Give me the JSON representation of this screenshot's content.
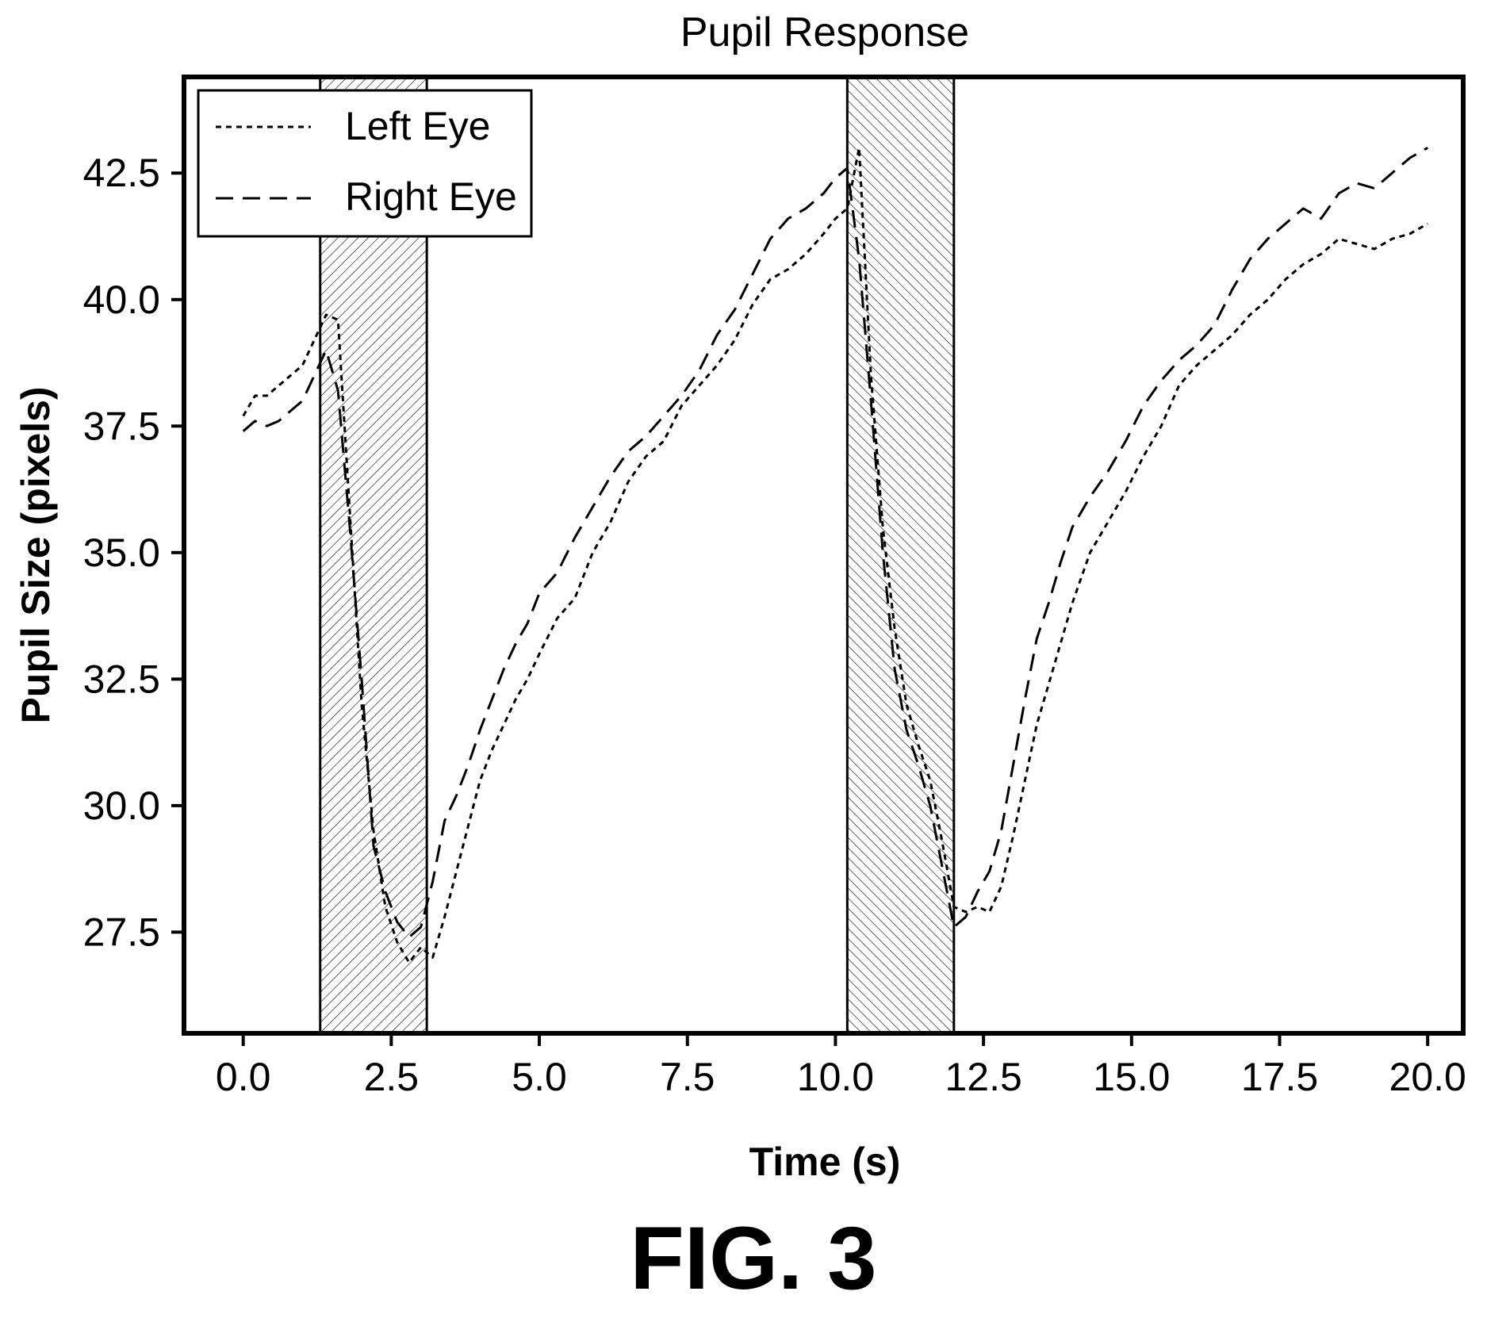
{
  "chart_data": {
    "type": "line",
    "title": "Pupil Response",
    "xlabel": "Time (s)",
    "ylabel": "Pupil Size (pixels)",
    "xlim": [
      -1.0,
      20.6
    ],
    "ylim": [
      25.5,
      44.4
    ],
    "xticks": [
      "0.0",
      "2.5",
      "5.0",
      "7.5",
      "10.0",
      "12.5",
      "15.0",
      "17.5",
      "20.0"
    ],
    "yticks": [
      "27.5",
      "30.0",
      "32.5",
      "35.0",
      "37.5",
      "40.0",
      "42.5"
    ],
    "grid": false,
    "legend_position": "top-left",
    "shaded_intervals": [
      [
        1.3,
        3.1
      ],
      [
        10.2,
        12.0
      ]
    ],
    "series": [
      {
        "name": "Left Eye",
        "style": "dotted",
        "x": [
          0.0,
          0.2,
          0.4,
          0.6,
          0.8,
          1.0,
          1.2,
          1.4,
          1.6,
          1.8,
          2.0,
          2.2,
          2.4,
          2.6,
          2.8,
          3.0,
          3.2,
          3.4,
          3.6,
          3.8,
          4.0,
          4.2,
          4.4,
          4.6,
          4.8,
          5.0,
          5.3,
          5.6,
          5.9,
          6.2,
          6.5,
          6.8,
          7.1,
          7.4,
          7.7,
          8.0,
          8.3,
          8.6,
          8.9,
          9.2,
          9.5,
          9.8,
          10.0,
          10.2,
          10.4,
          10.6,
          10.8,
          11.0,
          11.2,
          11.4,
          11.6,
          11.8,
          12.0,
          12.2,
          12.4,
          12.6,
          12.8,
          13.0,
          13.2,
          13.4,
          13.6,
          13.8,
          14.0,
          14.3,
          14.6,
          14.9,
          15.2,
          15.5,
          15.8,
          16.1,
          16.4,
          16.7,
          17.0,
          17.3,
          17.6,
          17.9,
          18.2,
          18.5,
          18.8,
          19.1,
          19.4,
          19.7,
          20.0
        ],
        "y": [
          37.7,
          38.1,
          38.1,
          38.3,
          38.5,
          38.7,
          39.2,
          39.7,
          39.6,
          35.8,
          32.0,
          29.5,
          28.0,
          27.3,
          26.9,
          27.2,
          27.0,
          27.8,
          28.7,
          29.6,
          30.5,
          31.1,
          31.6,
          32.1,
          32.5,
          33.0,
          33.7,
          34.1,
          35.0,
          35.6,
          36.4,
          36.9,
          37.2,
          37.9,
          38.3,
          38.7,
          39.2,
          39.9,
          40.4,
          40.6,
          40.9,
          41.3,
          41.6,
          41.8,
          43.0,
          38.5,
          35.5,
          33.5,
          32.0,
          31.2,
          30.5,
          29.3,
          28.0,
          27.9,
          28.0,
          27.9,
          28.4,
          29.4,
          30.5,
          31.6,
          32.4,
          33.2,
          34.0,
          35.0,
          35.6,
          36.2,
          36.9,
          37.5,
          38.3,
          38.7,
          39.0,
          39.3,
          39.7,
          40.0,
          40.4,
          40.7,
          40.9,
          41.2,
          41.1,
          41.0,
          41.2,
          41.3,
          41.5
        ]
      },
      {
        "name": "Right Eye",
        "style": "dashed",
        "x": [
          0.0,
          0.2,
          0.4,
          0.6,
          0.8,
          1.0,
          1.2,
          1.4,
          1.6,
          1.8,
          2.0,
          2.2,
          2.4,
          2.6,
          2.8,
          3.0,
          3.2,
          3.4,
          3.6,
          3.8,
          4.0,
          4.2,
          4.4,
          4.6,
          4.8,
          5.0,
          5.3,
          5.6,
          5.9,
          6.2,
          6.5,
          6.8,
          7.1,
          7.4,
          7.7,
          8.0,
          8.3,
          8.6,
          8.9,
          9.2,
          9.5,
          9.8,
          10.0,
          10.2,
          10.4,
          10.6,
          10.8,
          11.0,
          11.2,
          11.4,
          11.6,
          11.8,
          12.0,
          12.2,
          12.4,
          12.6,
          12.8,
          13.0,
          13.2,
          13.4,
          13.6,
          13.8,
          14.0,
          14.3,
          14.6,
          14.9,
          15.2,
          15.5,
          15.8,
          16.1,
          16.4,
          16.7,
          17.0,
          17.3,
          17.6,
          17.9,
          18.2,
          18.5,
          18.8,
          19.1,
          19.4,
          19.7,
          20.0
        ],
        "y": [
          37.4,
          37.6,
          37.5,
          37.6,
          37.8,
          38.0,
          38.5,
          39.0,
          38.2,
          35.5,
          32.5,
          29.2,
          28.3,
          27.7,
          27.4,
          27.6,
          28.5,
          29.7,
          30.2,
          30.8,
          31.5,
          32.1,
          32.7,
          33.2,
          33.6,
          34.2,
          34.6,
          35.3,
          35.9,
          36.5,
          37.0,
          37.3,
          37.7,
          38.1,
          38.6,
          39.3,
          39.8,
          40.5,
          41.2,
          41.6,
          41.8,
          42.1,
          42.4,
          42.6,
          40.8,
          38.0,
          35.0,
          32.7,
          31.5,
          30.8,
          30.0,
          28.8,
          27.6,
          27.8,
          28.3,
          28.7,
          29.5,
          30.8,
          32.1,
          33.3,
          34.0,
          34.8,
          35.5,
          36.1,
          36.6,
          37.2,
          37.9,
          38.4,
          38.8,
          39.1,
          39.5,
          40.2,
          40.8,
          41.2,
          41.5,
          41.8,
          41.6,
          42.1,
          42.3,
          42.2,
          42.5,
          42.8,
          43.0
        ]
      }
    ]
  },
  "figure_label": "FIG. 3"
}
